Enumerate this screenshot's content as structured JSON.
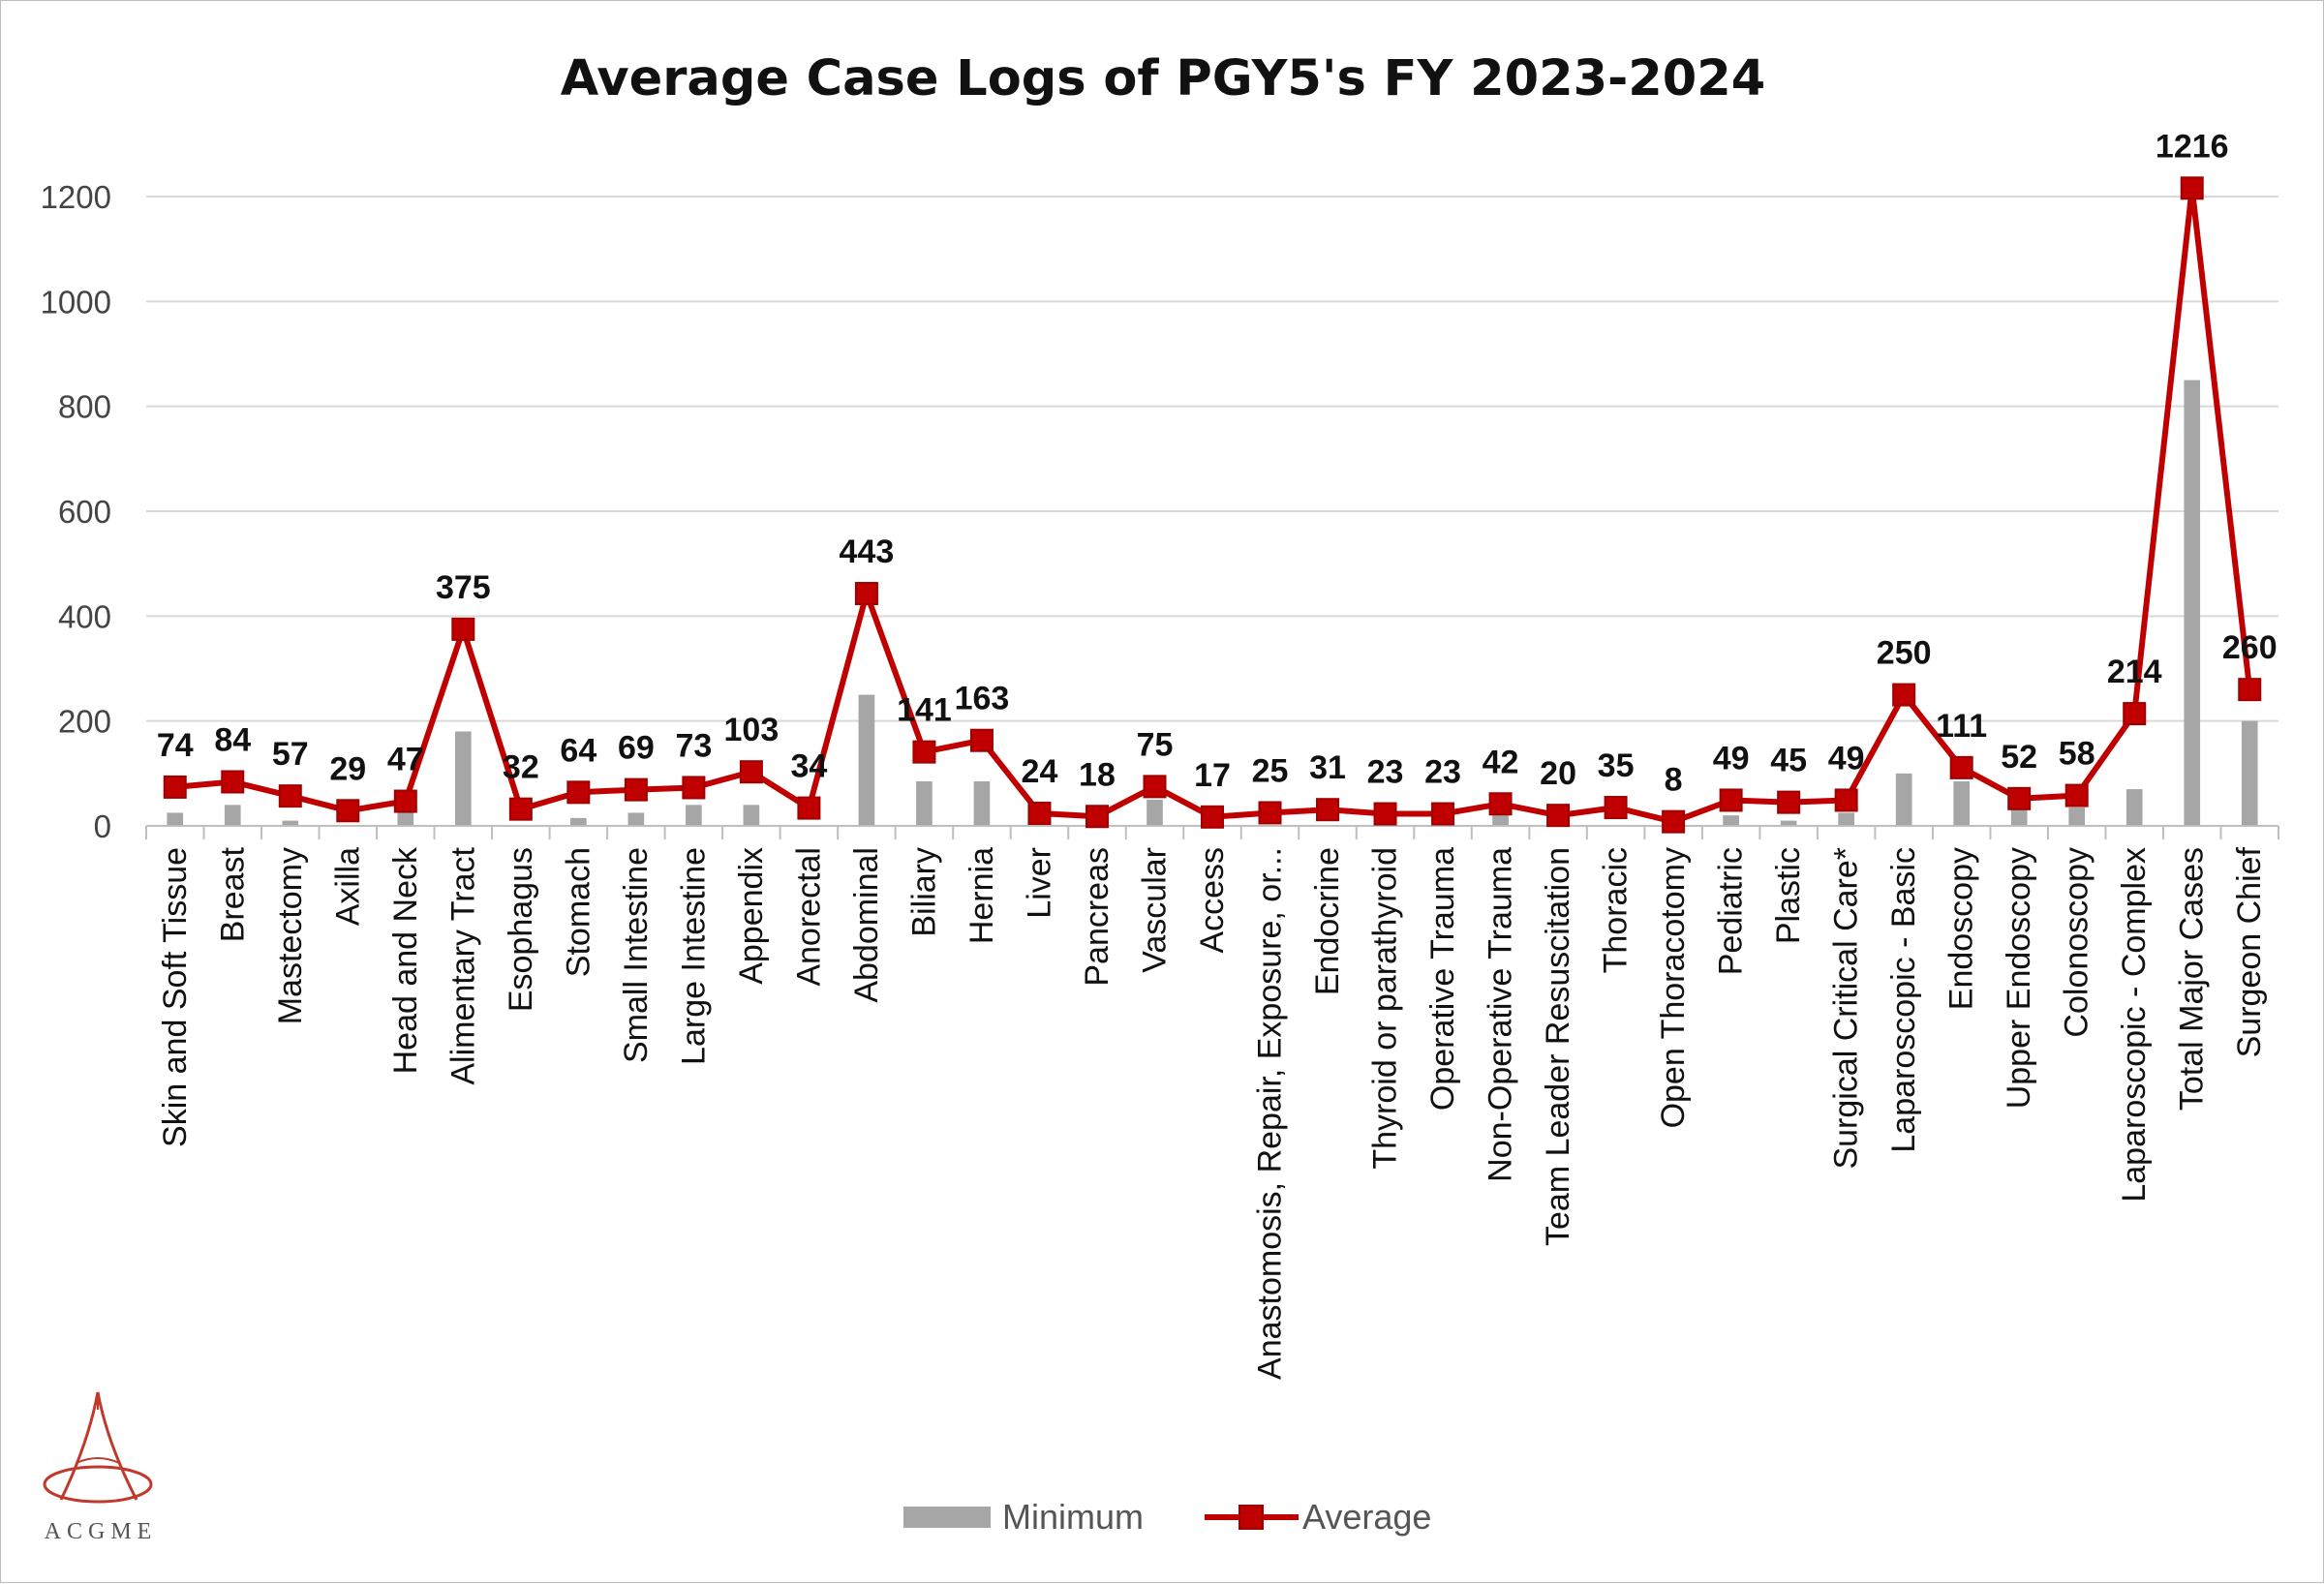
{
  "chart_data": {
    "type": "bar+line",
    "title": "Average Case Logs of PGY5's FY 2023-2024",
    "xlabel": "",
    "ylabel": "",
    "ylim": [
      0,
      1200
    ],
    "yticks": [
      0,
      200,
      400,
      600,
      800,
      1000,
      1200
    ],
    "grid": true,
    "legend_position": "bottom",
    "categories": [
      "Skin and Soft Tissue",
      "Breast",
      "Mastectomy",
      "Axilla",
      "Head and Neck",
      "Alimentary Tract",
      "Esophagus",
      "Stomach",
      "Small Intestine",
      "Large Intestine",
      "Appendix",
      "Anorectal",
      "Abdominal",
      "Biliary",
      "Hernia",
      "Liver",
      "Pancreas",
      "Vascular",
      "Access",
      "Anastomosis, Repair, Exposure, or...",
      "Endocrine",
      "Thyroid or parathyroid",
      "Operative Trauma",
      "Non-Operative Trauma",
      "Team Leader Resuscitation",
      "Thoracic",
      "Open Thoracotomy",
      "Pediatric",
      "Plastic",
      "Surgical Critical Care*",
      "Laparoscopic - Basic",
      "Endoscopy",
      "Upper Endoscopy",
      "Colonoscopy",
      "Laparoscopic - Complex",
      "Total Major Cases",
      "Surgeon Chief"
    ],
    "series": [
      {
        "name": "Minimum",
        "kind": "bar",
        "color": "#a6a6a6",
        "values": [
          25,
          40,
          10,
          0,
          30,
          180,
          0,
          15,
          25,
          40,
          40,
          0,
          250,
          85,
          85,
          0,
          0,
          50,
          0,
          0,
          0,
          0,
          0,
          20,
          0,
          0,
          0,
          20,
          10,
          25,
          100,
          85,
          35,
          35,
          70,
          850,
          200
        ]
      },
      {
        "name": "Average",
        "kind": "line",
        "color": "#c00000",
        "values": [
          74,
          84,
          57,
          29,
          47,
          375,
          32,
          64,
          69,
          73,
          103,
          34,
          443,
          141,
          163,
          24,
          18,
          75,
          17,
          25,
          31,
          23,
          23,
          42,
          20,
          35,
          8,
          49,
          45,
          49,
          250,
          111,
          52,
          58,
          214,
          1216,
          260
        ],
        "data_labels": [
          "74",
          "84",
          "57",
          "29",
          "47",
          "375",
          "32",
          "64",
          "69",
          "73",
          "103",
          "34",
          "443",
          "141",
          "163",
          "24",
          "18",
          "75",
          "17",
          "25",
          "31",
          "23",
          "23",
          "42",
          "20",
          "35",
          "8",
          "49",
          "45",
          "49",
          "250",
          "111",
          "52",
          "58",
          "214",
          "1216",
          "260"
        ]
      }
    ]
  },
  "logo": {
    "name": "acgme-logo-icon",
    "text": "ACGME"
  }
}
